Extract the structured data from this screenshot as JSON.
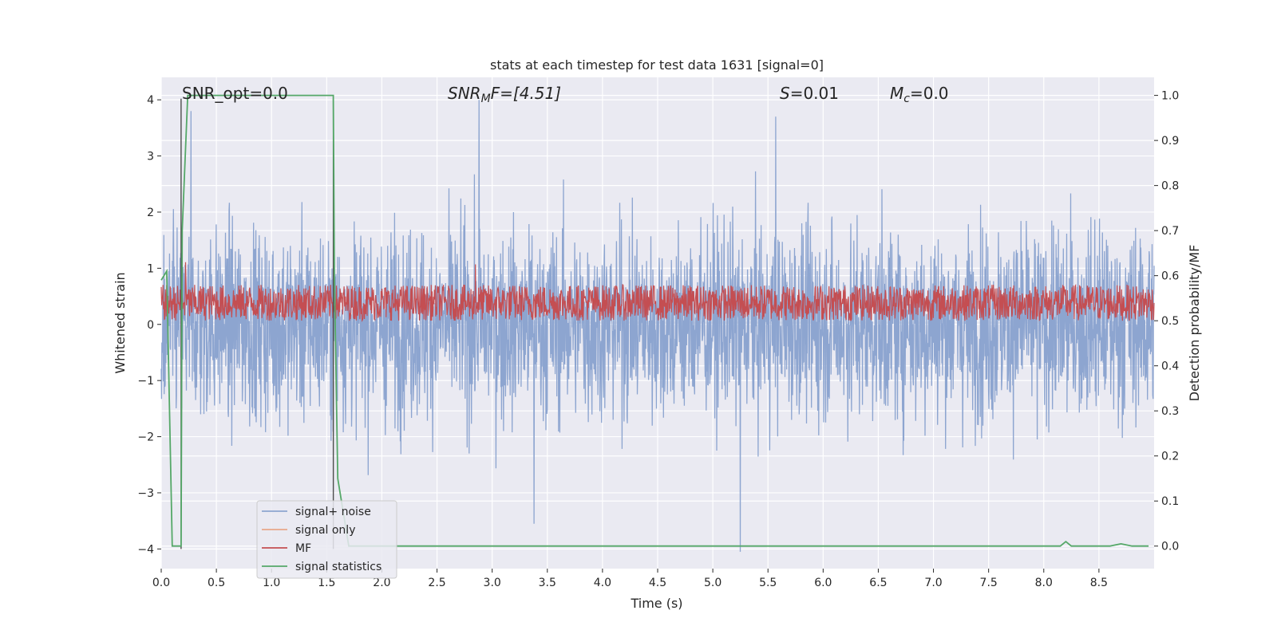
{
  "chart_data": {
    "type": "line",
    "title": "stats at each timestep for test data 1631 [signal=0]",
    "xlabel": "Time (s)",
    "ylabel_left": "Whitened strain",
    "ylabel_right": "Detection probability/MF",
    "xlim": [
      0.0,
      9.0
    ],
    "ylim_left": [
      -4.35,
      4.4
    ],
    "ylim_right": [
      -0.05,
      1.04
    ],
    "x_ticks": [
      0.0,
      0.5,
      1.0,
      1.5,
      2.0,
      2.5,
      3.0,
      3.5,
      4.0,
      4.5,
      5.0,
      5.5,
      6.0,
      6.5,
      7.0,
      7.5,
      8.0,
      8.5
    ],
    "x_tick_labels": [
      "0.0",
      "0.5",
      "1.0",
      "1.5",
      "2.0",
      "2.5",
      "3.0",
      "3.5",
      "4.0",
      "4.5",
      "5.0",
      "5.5",
      "6.0",
      "6.5",
      "7.0",
      "7.5",
      "8.0",
      "8.5"
    ],
    "y_left_ticks": [
      -4,
      -3,
      -2,
      -1,
      0,
      1,
      2,
      3,
      4
    ],
    "y_left_tick_labels": [
      "−4",
      "−3",
      "−2",
      "−1",
      "0",
      "1",
      "2",
      "3",
      "4"
    ],
    "y_right_ticks": [
      0.0,
      0.1,
      0.2,
      0.3,
      0.4,
      0.5,
      0.6,
      0.7,
      0.8,
      0.9,
      1.0
    ],
    "y_right_tick_labels": [
      "0.0",
      "0.1",
      "0.2",
      "0.3",
      "0.4",
      "0.5",
      "0.6",
      "0.7",
      "0.8",
      "0.9",
      "1.0"
    ],
    "grid": true,
    "legend_placement": "lower-left",
    "annotations": {
      "snr_opt": "SNR_opt=0.0",
      "snr_mf_sym": "SNR",
      "snr_mf_sub": "M",
      "snr_mf_rest": "F=[4.51]",
      "s_sym": "S",
      "s_rest": "=0.01",
      "mc_sym": "M",
      "mc_sub": "c",
      "mc_rest": "=0.0"
    },
    "markers": [
      0.18,
      1.56
    ],
    "series": [
      {
        "name": "signal+ noise",
        "axis": "left",
        "color": "#8da5d0",
        "style": "dense-noise",
        "sigma": 0.85,
        "x_range": [
          0.0,
          9.0
        ],
        "notable_peaks": [
          [
            0.27,
            3.8
          ],
          [
            2.88,
            4.0
          ],
          [
            5.25,
            -4.05
          ],
          [
            3.38,
            -3.55
          ],
          [
            5.57,
            3.7
          ]
        ]
      },
      {
        "name": "signal only",
        "axis": "left",
        "color": "#e8a88a",
        "values": []
      },
      {
        "name": "MF",
        "axis": "right",
        "color": "#c44e52",
        "style": "band",
        "band_range": [
          0.5,
          0.58
        ],
        "notable_peaks": [
          [
            2.85,
            0.625
          ],
          [
            0.22,
            0.63
          ]
        ]
      },
      {
        "name": "signal statistics",
        "axis": "right",
        "color": "#55a868",
        "x": [
          0.0,
          0.05,
          0.1,
          0.12,
          0.18,
          0.19,
          0.24,
          0.25,
          1.56,
          1.57,
          1.6,
          1.7,
          2.0,
          8.15,
          8.2,
          8.25,
          8.6,
          8.7,
          8.8,
          8.95
        ],
        "values": [
          0.59,
          0.61,
          0.0,
          0.0,
          0.0,
          0.7,
          1.0,
          1.0,
          1.0,
          0.6,
          0.15,
          0.0,
          0.0,
          0.0,
          0.01,
          0.0,
          0.0,
          0.005,
          0.0,
          0.0
        ]
      }
    ]
  }
}
